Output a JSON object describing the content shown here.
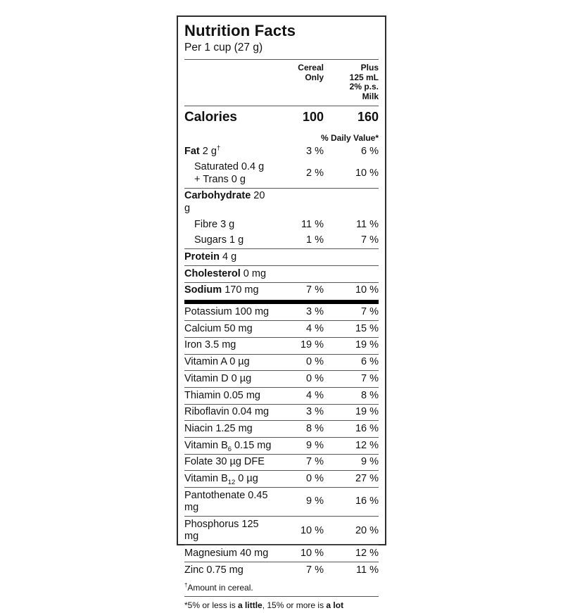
{
  "page": {
    "background": "#ffffff"
  },
  "label": {
    "border_color": "#2e2e2e",
    "accent_color": "#000000",
    "title": "Nutrition Facts",
    "serving": "Per 1 cup (27 g)",
    "columns": {
      "col1": [
        "Cereal",
        "Only"
      ],
      "col2": [
        "Plus",
        "125 mL",
        "2% p.s.",
        "Milk"
      ]
    },
    "calories": {
      "label": "Calories",
      "col1": "100",
      "col2": "160"
    },
    "daily_value_note": "% Daily Value*",
    "rows": [
      {
        "sep": "none",
        "indent": false,
        "segments": [
          {
            "text": "Fat",
            "bold": true
          },
          {
            "text": " 2 g"
          },
          {
            "sup": "†"
          }
        ],
        "col1": "3 %",
        "col2": "6 %"
      },
      {
        "sep": "none",
        "indent": true,
        "segments": [
          {
            "text": "Saturated 0.4 g"
          },
          {
            "break": true
          },
          {
            "text": "+ Trans 0 g"
          }
        ],
        "col1": "2 %",
        "col2": "10 %"
      },
      {
        "sep": "thin",
        "indent": false,
        "segments": [
          {
            "text": "Carbohydrate",
            "bold": true
          },
          {
            "text": " 20 g"
          }
        ],
        "col1": "",
        "col2": ""
      },
      {
        "sep": "none",
        "indent": true,
        "segments": [
          {
            "text": "Fibre 3 g"
          }
        ],
        "col1": "11 %",
        "col2": "11 %"
      },
      {
        "sep": "none",
        "indent": true,
        "segments": [
          {
            "text": "Sugars 1 g"
          }
        ],
        "col1": "1 %",
        "col2": "7 %"
      },
      {
        "sep": "thin",
        "indent": false,
        "segments": [
          {
            "text": "Protein",
            "bold": true
          },
          {
            "text": " 4 g"
          }
        ],
        "col1": "",
        "col2": ""
      },
      {
        "sep": "thin",
        "indent": false,
        "segments": [
          {
            "text": "Cholesterol",
            "bold": true
          },
          {
            "text": " 0 mg"
          }
        ],
        "col1": "",
        "col2": ""
      },
      {
        "sep": "thin",
        "indent": false,
        "segments": [
          {
            "text": "Sodium",
            "bold": true
          },
          {
            "text": " 170 mg"
          }
        ],
        "col1": "7 %",
        "col2": "10 %"
      },
      {
        "sep": "thick",
        "indent": false,
        "segments": [
          {
            "text": "Potassium 100 mg"
          }
        ],
        "col1": "3 %",
        "col2": "7 %"
      },
      {
        "sep": "thin",
        "indent": false,
        "segments": [
          {
            "text": "Calcium 50 mg"
          }
        ],
        "col1": "4 %",
        "col2": "15 %"
      },
      {
        "sep": "thin",
        "indent": false,
        "segments": [
          {
            "text": "Iron 3.5 mg"
          }
        ],
        "col1": "19 %",
        "col2": "19 %"
      },
      {
        "sep": "thin",
        "indent": false,
        "segments": [
          {
            "text": "Vitamin A 0 µg"
          }
        ],
        "col1": "0 %",
        "col2": "6 %"
      },
      {
        "sep": "thin",
        "indent": false,
        "segments": [
          {
            "text": "Vitamin D 0 µg"
          }
        ],
        "col1": "0 %",
        "col2": "7 %"
      },
      {
        "sep": "thin",
        "indent": false,
        "segments": [
          {
            "text": "Thiamin 0.05 mg"
          }
        ],
        "col1": "4 %",
        "col2": "8 %"
      },
      {
        "sep": "thin",
        "indent": false,
        "segments": [
          {
            "text": "Riboflavin 0.04 mg"
          }
        ],
        "col1": "3 %",
        "col2": "19 %"
      },
      {
        "sep": "thin",
        "indent": false,
        "segments": [
          {
            "text": "Niacin 1.25 mg"
          }
        ],
        "col1": "8 %",
        "col2": "16 %"
      },
      {
        "sep": "thin",
        "indent": false,
        "segments": [
          {
            "text": "Vitamin B"
          },
          {
            "sub": "6"
          },
          {
            "text": " 0.15 mg"
          }
        ],
        "col1": "9 %",
        "col2": "12 %"
      },
      {
        "sep": "thin",
        "indent": false,
        "segments": [
          {
            "text": "Folate 30 µg DFE"
          }
        ],
        "col1": "7 %",
        "col2": "9 %"
      },
      {
        "sep": "thin",
        "indent": false,
        "segments": [
          {
            "text": "Vitamin B"
          },
          {
            "sub": "12"
          },
          {
            "text": " 0 µg"
          }
        ],
        "col1": "0 %",
        "col2": "27 %"
      },
      {
        "sep": "thin",
        "indent": false,
        "segments": [
          {
            "text": "Pantothenate 0.45 mg"
          }
        ],
        "col1": "9 %",
        "col2": "16 %"
      },
      {
        "sep": "thin",
        "indent": false,
        "segments": [
          {
            "text": "Phosphorus 125 mg"
          }
        ],
        "col1": "10 %",
        "col2": "20 %"
      },
      {
        "sep": "thin",
        "indent": false,
        "segments": [
          {
            "text": "Magnesium 40 mg"
          }
        ],
        "col1": "10 %",
        "col2": "12 %"
      },
      {
        "sep": "thin",
        "indent": false,
        "segments": [
          {
            "text": "Zinc 0.75 mg"
          }
        ],
        "col1": "7 %",
        "col2": "11 %"
      }
    ],
    "footnotes": [
      {
        "segments": [
          {
            "sup": "†"
          },
          {
            "text": "Amount in cereal."
          }
        ]
      },
      {
        "segments": [
          {
            "text": "*5% or less is "
          },
          {
            "text": "a little",
            "bold": true
          },
          {
            "text": ", 15% or more is "
          },
          {
            "text": "a lot",
            "bold": true
          }
        ]
      }
    ]
  }
}
